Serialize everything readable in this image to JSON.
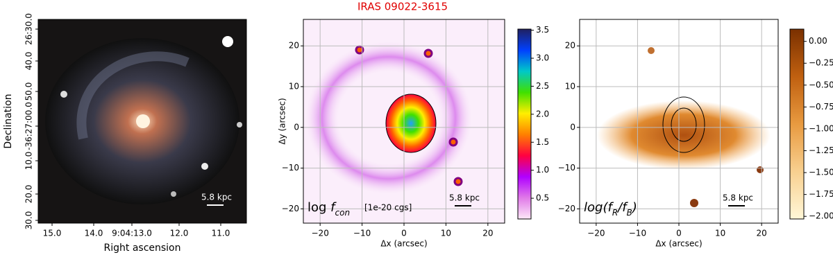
{
  "title": "IRAS 09022-3615",
  "panels": [
    {
      "xlabel": "Right ascension",
      "ylabel": "Declination",
      "xticks": [
        "15.0",
        "14.0",
        "9:04:13.0",
        "12.0",
        "11.0"
      ],
      "yticks": [
        "26:30.0",
        "40.0",
        "50.0",
        "-36:27:00.0",
        "10.0",
        "20.0",
        "30.0"
      ],
      "scalebar": "5.8 kpc"
    },
    {
      "xlabel": "Δx (arcsec)",
      "ylabel": "Δy (arcsec)",
      "xlim": [
        -24,
        24
      ],
      "ylim": [
        -23.5,
        26.5
      ],
      "xticks": [
        {
          "value": -20,
          "label": "−20"
        },
        {
          "value": -10,
          "label": "−10"
        },
        0,
        10,
        20
      ],
      "yticks": [
        {
          "value": -20,
          "label": "−20"
        },
        {
          "value": -10,
          "label": "−10"
        },
        0,
        10,
        20
      ],
      "label": [
        {
          "text": "log "
        },
        {
          "text": "f",
          "italic": true
        },
        {
          "text": "con",
          "sub": true,
          "italic": true
        }
      ],
      "unit": "[1e-20 cgs]",
      "scalebar": "5.8 kpc",
      "colorbar": {
        "lim": [
          0.13,
          3.52
        ],
        "colors": [
          "#fde8f8",
          "#e07ae8",
          "#b000ff",
          "#ff0040",
          "#ff8000",
          "#ffee00",
          "#40e000",
          "#00c8c8",
          "#0040ff",
          "#202060"
        ],
        "ticks": [
          0.5,
          {
            "value": 1,
            "label": "1.0"
          },
          1.5,
          {
            "value": 2,
            "label": "2.0"
          },
          2.5,
          {
            "value": 3,
            "label": "3.0"
          },
          3.5
        ]
      }
    },
    {
      "xlabel": "Δx (arcsec)",
      "xlim": [
        -24,
        24
      ],
      "ylim": [
        -23.5,
        26.5
      ],
      "xticks": [
        {
          "value": -20,
          "label": "−20"
        },
        {
          "value": -10,
          "label": "−10"
        },
        0,
        10,
        20
      ],
      "yticks": [
        {
          "value": -20,
          "label": "−20"
        },
        {
          "value": -10,
          "label": "−10"
        },
        0,
        10,
        20
      ],
      "label": [
        {
          "text": "log(",
          "italic": true
        },
        {
          "text": "f",
          "italic": true
        },
        {
          "text": "R",
          "sub": true,
          "italic": true
        },
        {
          "text": "/",
          "italic": true
        },
        {
          "text": "f",
          "italic": true
        },
        {
          "text": "B",
          "sub": true,
          "italic": true
        },
        {
          "text": ")",
          "italic": true
        }
      ],
      "scalebar": "5.8 kpc",
      "colorbar": {
        "lim": [
          -2.03,
          0.14
        ],
        "colors": [
          "#fff7d8",
          "#f8d090",
          "#e89a40",
          "#c06010",
          "#7a3000"
        ],
        "ticks": [
          {
            "value": 0,
            "label": "0.00"
          },
          {
            "value": -0.25,
            "label": "−0.25"
          },
          {
            "value": -0.5,
            "label": "−0.50"
          },
          {
            "value": -0.75,
            "label": "−0.75"
          },
          {
            "value": -1,
            "label": "−1.00"
          },
          {
            "value": -1.25,
            "label": "−1.25"
          },
          {
            "value": -1.5,
            "label": "−1.50"
          },
          {
            "value": -1.75,
            "label": "−1.75"
          },
          {
            "value": -2,
            "label": "−2.00"
          }
        ]
      }
    }
  ]
}
